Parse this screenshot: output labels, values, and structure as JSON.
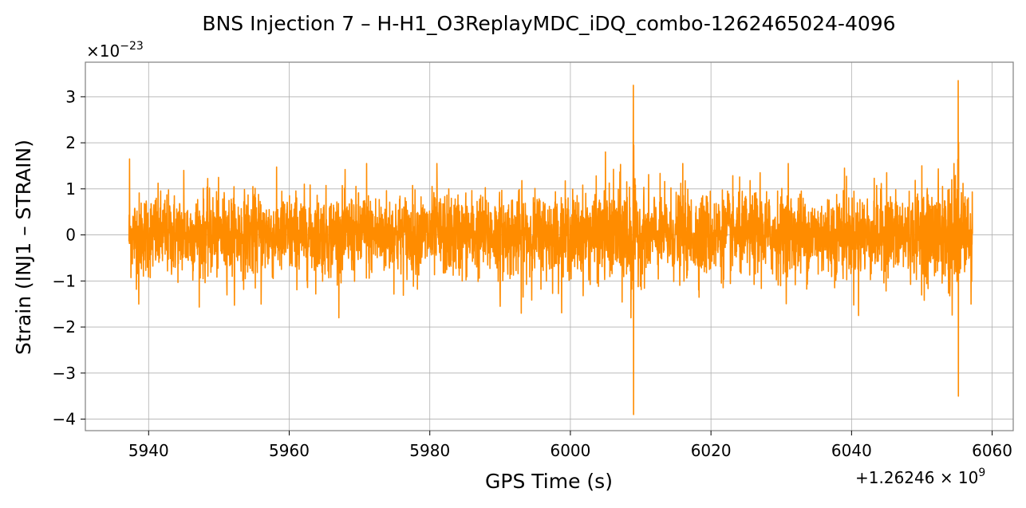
{
  "chart_data": {
    "type": "line",
    "title": "BNS Injection 7 – H-H1_O3ReplayMDC_iDQ_combo-1262465024-4096",
    "xlabel": "GPS Time (s)",
    "ylabel": "Strain (INJ1 – STRAIN)",
    "x_offset_label": "+1.26246 × 10^9",
    "y_scale_label": "×10^−23",
    "xlim": [
      5931,
      6063
    ],
    "ylim": [
      -4.25,
      3.75
    ],
    "x_ticks": [
      5940,
      5960,
      5980,
      6000,
      6020,
      6040,
      6060
    ],
    "y_ticks": [
      -4,
      -3,
      -2,
      -1,
      0,
      1,
      2,
      3
    ],
    "x_tick_labels": [
      "5940",
      "5960",
      "5980",
      "6000",
      "6020",
      "6040",
      "6060"
    ],
    "y_tick_labels": [
      "−4",
      "−3",
      "−2",
      "−1",
      "0",
      "1",
      "2",
      "3"
    ],
    "grid": true,
    "series": [
      {
        "color": "#ff8c00",
        "x_range": [
          5937.2,
          6057.2
        ],
        "noise_envelope": 1.0,
        "events": [
          {
            "x": 6009.0,
            "peak_max": 3.25,
            "peak_min": -3.9
          },
          {
            "x": 6055.2,
            "peak_max": 3.35,
            "peak_min": -3.5
          }
        ],
        "extremes": [
          {
            "x": 5937.3,
            "y": 1.65
          },
          {
            "x": 5938.6,
            "y": -1.5
          },
          {
            "x": 5945.0,
            "y": 1.4
          },
          {
            "x": 5956.0,
            "y": -1.5
          },
          {
            "x": 5971.0,
            "y": 1.55
          },
          {
            "x": 5981.0,
            "y": 1.55
          },
          {
            "x": 5990.0,
            "y": -1.55
          },
          {
            "x": 5993.0,
            "y": -1.7
          },
          {
            "x": 6005.0,
            "y": 1.8
          },
          {
            "x": 6016.0,
            "y": 1.55
          },
          {
            "x": 6027.0,
            "y": 1.35
          },
          {
            "x": 6031.0,
            "y": 1.55
          },
          {
            "x": 6039.0,
            "y": 1.45
          },
          {
            "x": 6045.0,
            "y": 1.35
          },
          {
            "x": 6041.0,
            "y": -1.75
          },
          {
            "x": 6050.0,
            "y": 1.5
          },
          {
            "x": 6057.0,
            "y": -1.5
          }
        ]
      }
    ]
  }
}
